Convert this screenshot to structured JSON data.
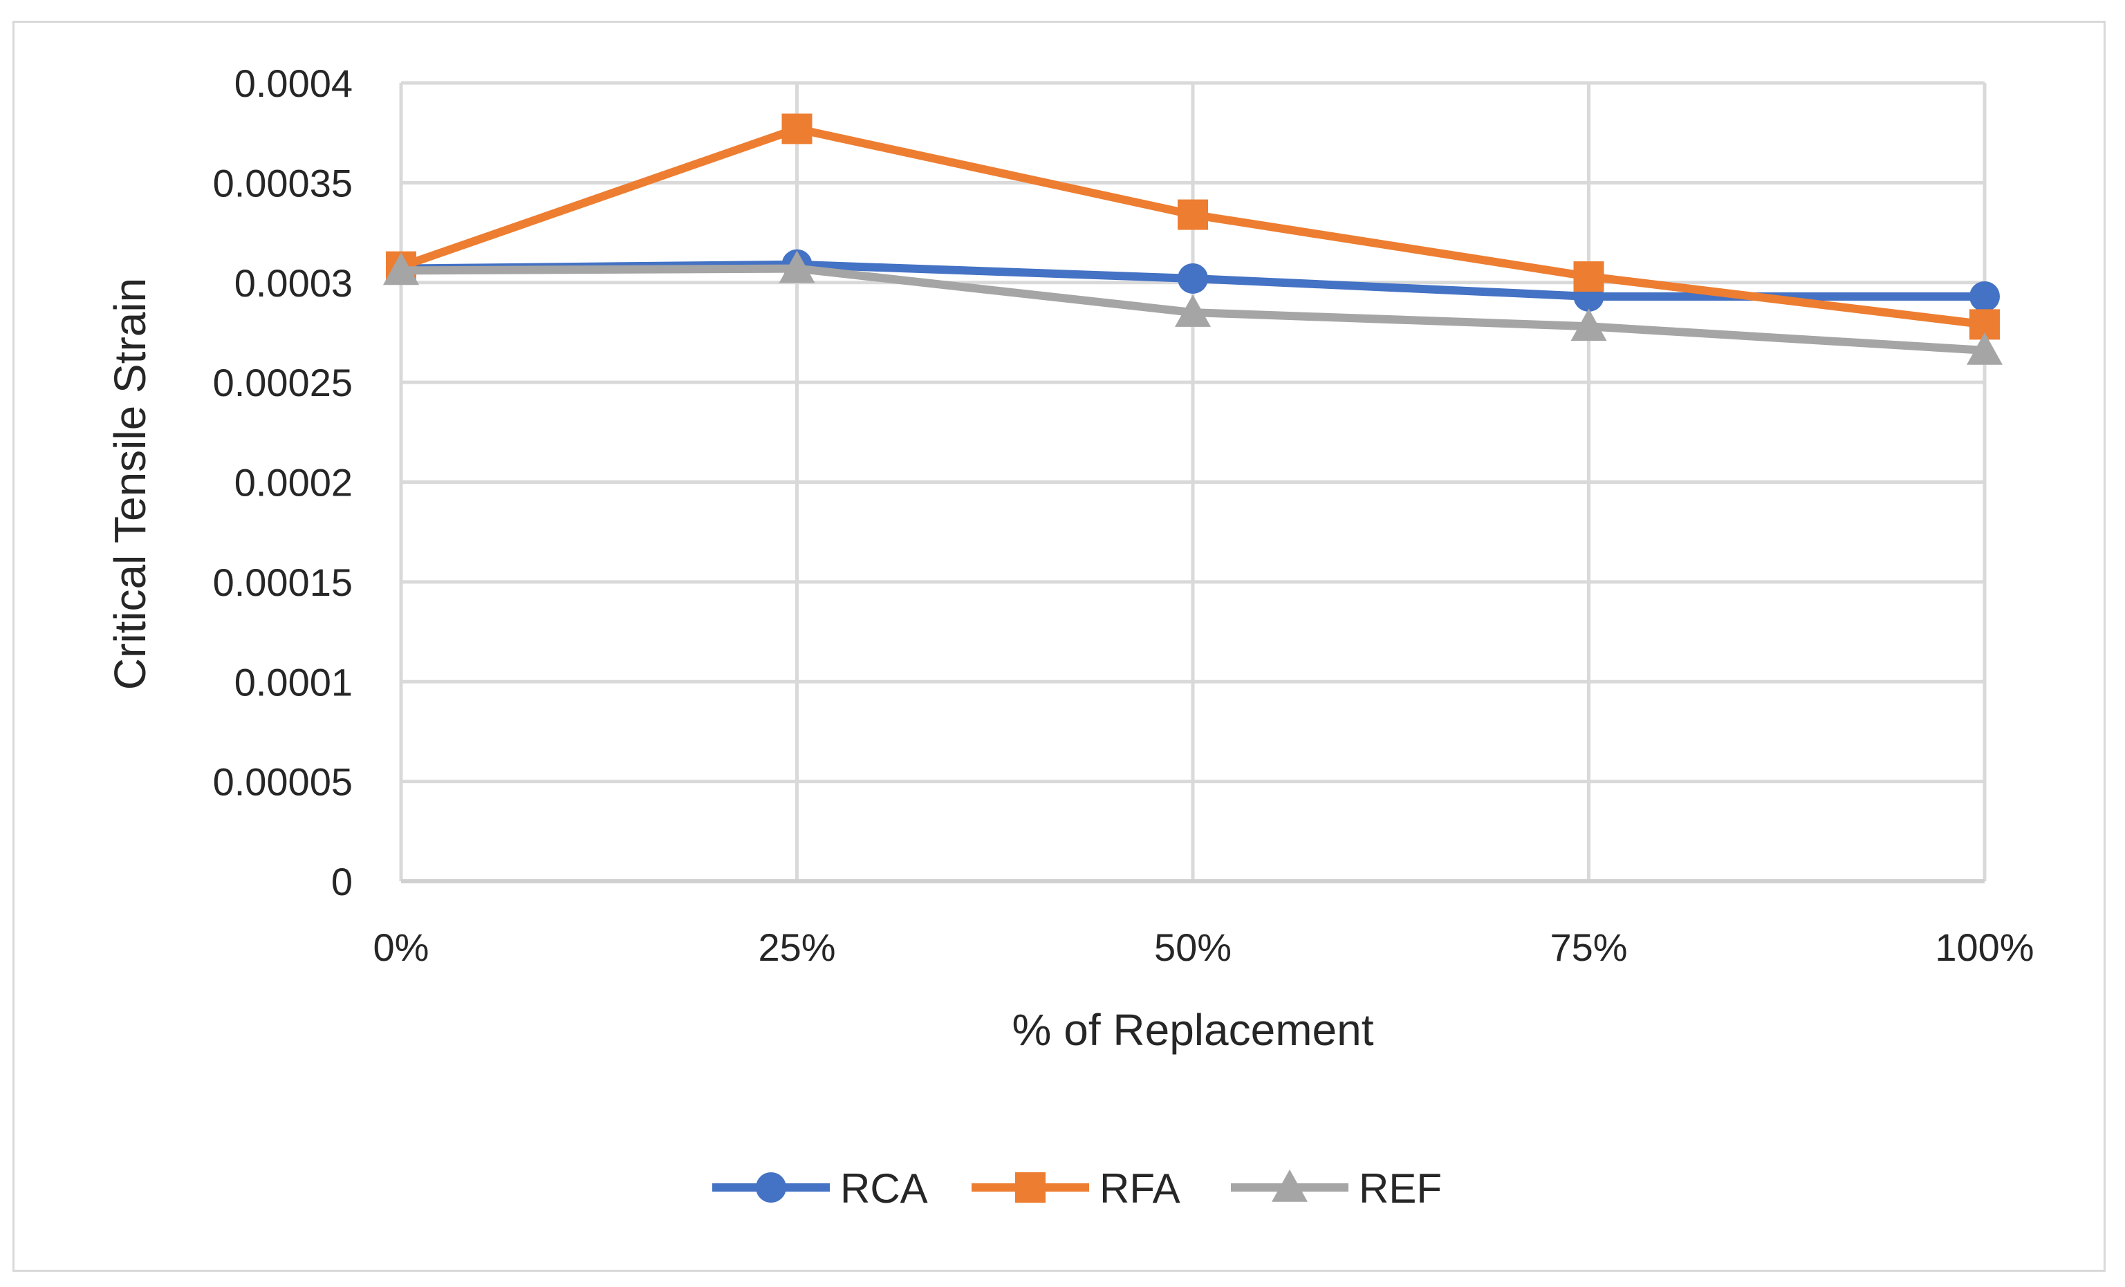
{
  "chart_data": {
    "type": "line",
    "title": "",
    "xlabel": "% of Replacement",
    "ylabel": "Critical Tensile Strain",
    "categories": [
      "0%",
      "25%",
      "50%",
      "75%",
      "100%"
    ],
    "ylim": [
      0,
      0.0004
    ],
    "yticks": [
      "0",
      "0.00005",
      "0.0001",
      "0.00015",
      "0.0002",
      "0.00025",
      "0.0003",
      "0.00035",
      "0.0004"
    ],
    "ytick_values": [
      0,
      5e-05,
      0.0001,
      0.00015,
      0.0002,
      0.00025,
      0.0003,
      0.00035,
      0.0004
    ],
    "grid": true,
    "legend_position": "bottom",
    "series": [
      {
        "name": "RCA",
        "color": "#4472C4",
        "marker": "circle",
        "values": [
          0.000307,
          0.000309,
          0.000302,
          0.000293,
          0.000293
        ]
      },
      {
        "name": "RFA",
        "color": "#ED7D31",
        "marker": "square",
        "values": [
          0.000308,
          0.000377,
          0.000334,
          0.000303,
          0.000279
        ]
      },
      {
        "name": "REF",
        "color": "#A5A5A5",
        "marker": "triangle",
        "values": [
          0.000306,
          0.000307,
          0.000285,
          0.000278,
          0.000266
        ]
      }
    ]
  }
}
